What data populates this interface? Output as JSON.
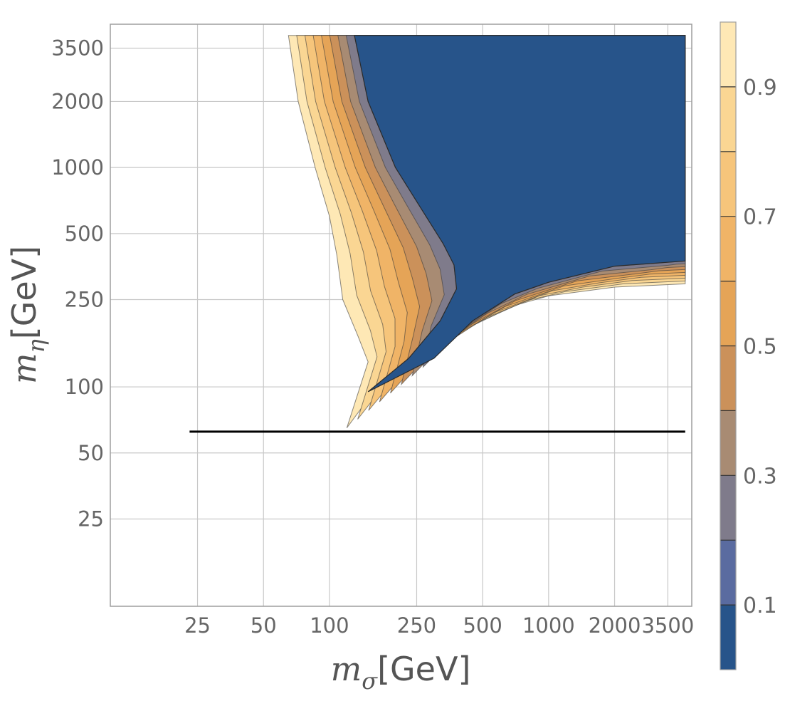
{
  "chart_data": {
    "type": "contour",
    "x_axis": {
      "scale": "log",
      "range": [
        10,
        4500
      ],
      "ticks": [
        25,
        50,
        100,
        250,
        500,
        1000,
        2000,
        3500
      ],
      "tick_labels": [
        "25",
        "50",
        "100",
        "250",
        "500",
        "1000",
        "2000",
        "3500"
      ],
      "label_symbol": "m",
      "label_subscript": "σ",
      "label_unit": "[GeV]"
    },
    "y_axis": {
      "scale": "log",
      "range": [
        10,
        4500
      ],
      "ticks": [
        25,
        50,
        100,
        250,
        500,
        1000,
        2000,
        3500
      ],
      "tick_labels": [
        "25",
        "50",
        "100",
        "250",
        "500",
        "1000",
        "2000",
        "3500"
      ],
      "label_symbol": "m",
      "label_subscript": "η",
      "label_unit": "[GeV]"
    },
    "grid": true,
    "colorbar": {
      "placement": "right",
      "range": [
        0,
        1
      ],
      "levels": [
        0,
        0.1,
        0.2,
        0.3,
        0.4,
        0.5,
        0.6,
        0.7,
        0.8,
        0.9,
        1.0
      ],
      "tick_values": [
        0.1,
        0.3,
        0.5,
        0.7,
        0.9
      ],
      "tick_labels": [
        "0.1",
        "0.3",
        "0.5",
        "0.7",
        "0.9"
      ],
      "colors": [
        "#27548a",
        "#5a6ba0",
        "#7f7b8b",
        "#a88b73",
        "#cb915a",
        "#e5a457",
        "#f0b467",
        "#f6c57b",
        "#fad693",
        "#fee8b5"
      ]
    },
    "regions": {
      "left_boundary": [
        [
          65,
          4000
        ],
        [
          72,
          2000
        ],
        [
          86,
          1000
        ],
        [
          100,
          600
        ],
        [
          108,
          400
        ],
        [
          115,
          250
        ],
        [
          135,
          170
        ],
        [
          150,
          130
        ]
      ],
      "blue_left_edge": [
        [
          130,
          4000
        ],
        [
          150,
          2000
        ],
        [
          200,
          1000
        ],
        [
          250,
          700
        ],
        [
          330,
          450
        ],
        [
          370,
          360
        ],
        [
          380,
          280
        ],
        [
          320,
          200
        ],
        [
          230,
          135
        ],
        [
          150,
          95
        ]
      ],
      "lower_boundary": [
        [
          120,
          65
        ],
        [
          150,
          88
        ],
        [
          230,
          120
        ],
        [
          400,
          180
        ],
        [
          700,
          235
        ],
        [
          1000,
          260
        ],
        [
          2000,
          285
        ],
        [
          4200,
          295
        ]
      ],
      "blue_lower_edge": [
        [
          300,
          135
        ],
        [
          450,
          200
        ],
        [
          700,
          265
        ],
        [
          1000,
          300
        ],
        [
          2000,
          355
        ],
        [
          4200,
          375
        ]
      ],
      "x_max": 4200,
      "y_max": 4000
    },
    "black_line": {
      "y": 62.5,
      "x_start": 23,
      "x_end": 4200
    }
  }
}
